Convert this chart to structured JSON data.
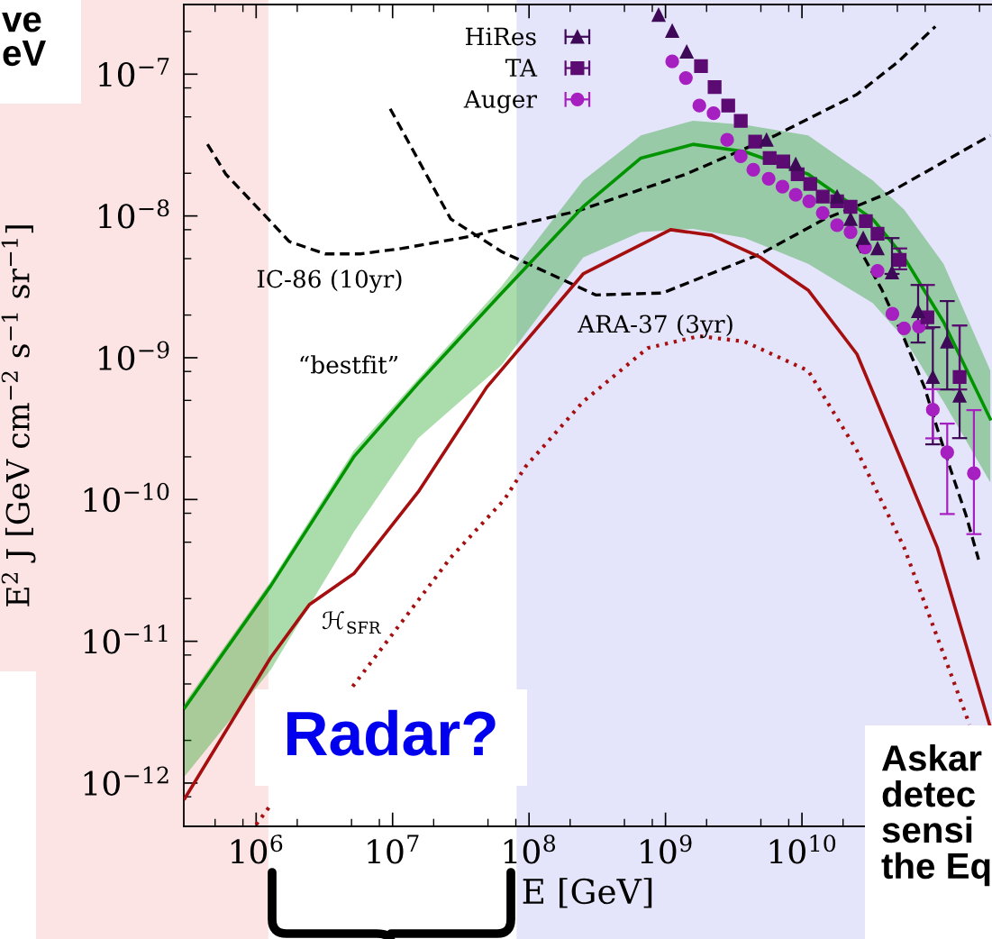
{
  "chart_data": {
    "type": "line",
    "log": "xy",
    "xlabel": "E [GeV]",
    "ylabel": "E$^{2}$ J [GeV cm$^{−2}$ s$^{−1}$ sr$^{−1}$]",
    "xlim": [
      295000.0,
      247000000000.0
    ],
    "ylim": [
      4.95e-13,
      3.1e-07
    ],
    "xticks": [
      {
        "value": 500000.0,
        "label": null
      },
      {
        "value": 800000.0,
        "label": null
      },
      {
        "value": 1000000.0,
        "label": "10$^{6}$"
      },
      {
        "value": 2000000.0,
        "label": null
      },
      {
        "value": 5000000.0,
        "label": null
      },
      {
        "value": 8000000.0,
        "label": null
      },
      {
        "value": 10000000.0,
        "label": "10$^{7}$"
      },
      {
        "value": 20000000.0,
        "label": null
      },
      {
        "value": 50000000.0,
        "label": null
      },
      {
        "value": 80000000.0,
        "label": null
      },
      {
        "value": 100000000.0,
        "label": "10$^{8}$"
      },
      {
        "value": 200000000.0,
        "label": null
      },
      {
        "value": 500000000.0,
        "label": null
      },
      {
        "value": 800000000.0,
        "label": null
      },
      {
        "value": 1000000000.0,
        "label": "10$^{9}$"
      },
      {
        "value": 2000000000.0,
        "label": null
      },
      {
        "value": 5000000000.0,
        "label": null
      },
      {
        "value": 8000000000.0,
        "label": null
      },
      {
        "value": 10000000000.0,
        "label": "10$^{10}$"
      },
      {
        "value": 20000000000.0,
        "label": null
      },
      {
        "value": 50000000000.0,
        "label": null
      },
      {
        "value": 80000000000.0,
        "label": null
      },
      {
        "value": 200000000000.0,
        "label": null
      }
    ],
    "yticks": [
      {
        "value": 8e-13,
        "label": null
      },
      {
        "value": 1e-12,
        "label": "10$^{−12}$"
      },
      {
        "value": 2e-12,
        "label": null
      },
      {
        "value": 5e-12,
        "label": null
      },
      {
        "value": 8e-12,
        "label": null
      },
      {
        "value": 1e-11,
        "label": "10$^{−11}$"
      },
      {
        "value": 2e-11,
        "label": null
      },
      {
        "value": 5e-11,
        "label": null
      },
      {
        "value": 8e-11,
        "label": null
      },
      {
        "value": 1e-10,
        "label": "10$^{−10}$"
      },
      {
        "value": 2e-10,
        "label": null
      },
      {
        "value": 5e-10,
        "label": null
      },
      {
        "value": 8e-10,
        "label": null
      },
      {
        "value": 1e-09,
        "label": "10$^{−9}$"
      },
      {
        "value": 2e-09,
        "label": null
      },
      {
        "value": 5e-09,
        "label": null
      },
      {
        "value": 8e-09,
        "label": null
      },
      {
        "value": 1e-08,
        "label": "10$^{−8}$"
      },
      {
        "value": 2e-08,
        "label": null
      },
      {
        "value": 5e-08,
        "label": null
      },
      {
        "value": 8e-08,
        "label": null
      },
      {
        "value": 1e-07,
        "label": "10$^{−7}$"
      },
      {
        "value": 2e-07,
        "label": null
      }
    ],
    "legend": "top",
    "bands": [
      {
        "axis": "x",
        "from": 295000.0,
        "to": 1230000.0,
        "color": "#fde4e4"
      },
      {
        "axis": "x",
        "from": 81000000.0,
        "to": 247000000000.0,
        "color": "#e4e4fa"
      }
    ],
    "series": [
      {
        "type": "line",
        "color": "#000000",
        "line_style": "dashed",
        "x": [
          440000.0,
          600000.0,
          1280000.0,
          1750000.0,
          3200000.0,
          5800000.0,
          11700000.0,
          41000000.0,
          49000000.0,
          224000000.0,
          1410000000.0,
          6400000000.0,
          25300000000.0,
          51000000000.0,
          95000000000.0
        ],
        "values": [
          3.2e-08,
          1.97e-08,
          9.1e-09,
          6.6e-09,
          5.4e-09,
          5.4e-09,
          5.9e-09,
          7.3e-09,
          7.7e-09,
          1.08e-08,
          1.97e-08,
          3.7e-08,
          7.2e-08,
          1.23e-07,
          2.17e-07
        ]
      },
      {
        "type": "line",
        "color": "#000000",
        "line_style": "dashed",
        "x": [
          9600000.0,
          26700000.0,
          63000000.0,
          308000000.0,
          950000000.0,
          4970000000.0,
          14600000000.0,
          43000000000.0,
          240000000000.0
        ],
        "values": [
          5.7e-08,
          9.5e-09,
          5.6e-09,
          2.77e-09,
          2.86e-09,
          5.4e-09,
          9.5e-09,
          1.45e-08,
          3.7e-08
        ]
      },
      {
        "type": "line",
        "color": "#009400",
        "line_style": "solid",
        "x": [
          300000.0,
          1280000.0,
          5200000.0,
          15400000.0,
          63000000.0,
          249000000.0,
          660000000.0,
          1590000000.0,
          3800000000.0,
          11100000000.0,
          33000000000.0,
          56000000000.0,
          109000000000.0,
          240000000000.0
        ],
        "values": [
          3.4e-12,
          2.46e-11,
          2e-10,
          6.6e-10,
          2.86e-09,
          1.16e-08,
          2.56e-08,
          3.2e-08,
          2.84e-08,
          1.97e-08,
          9.5e-09,
          5.1e-09,
          1.79e-09,
          3.7e-10
        ],
        "lower": [
          1.12e-12,
          6.3e-12,
          5.9e-11,
          2.71e-10,
          8.9e-10,
          5.1e-09,
          7.7e-09,
          8.1e-09,
          7e-09,
          4.6e-09,
          2.43e-09,
          1.37e-09,
          4.9e-10,
          1.32e-10
        ],
        "upper": [
          3.7e-12,
          2.65e-11,
          2.21e-10,
          7.1e-10,
          3.2e-09,
          1.78e-08,
          3.7e-08,
          4.7e-08,
          4.4e-08,
          3.7e-08,
          1.78e-08,
          1.11e-08,
          4.6e-09,
          8.1e-10
        ]
      },
      {
        "type": "line",
        "color": "#a50f0f",
        "line_style": "solid",
        "x": [
          300000.0,
          1280000.0,
          2450000.0,
          5200000.0,
          15400000.0,
          49000000.0,
          249000000.0,
          1090000000.0,
          2190000000.0,
          4970000000.0,
          11100000000.0,
          25300000000.0,
          56000000000.0,
          98000000000.0,
          240000000000.0
        ],
        "values": [
          7.8e-13,
          7.7e-12,
          1.81e-11,
          3e-11,
          1.13e-10,
          6.2e-10,
          3.9e-09,
          8e-09,
          7.3e-09,
          5.1e-09,
          3e-09,
          1.06e-09,
          1.7e-10,
          4.6e-11,
          2.48e-12
        ]
      },
      {
        "type": "line",
        "color": "#a50f0f",
        "line_style": "dotted",
        "x": [
          1000000.0,
          1280000.0,
          2700000.0,
          5100000.0,
          26700000.0,
          66000000.0,
          94000000.0,
          249000000.0,
          740000000.0,
          1770000000.0,
          3800000000.0,
          11100000000.0,
          25300000000.0,
          56000000000.0,
          169000000000.0
        ],
        "values": [
          5.1e-13,
          7e-13,
          null,
          4.8e-12,
          3.9e-11,
          1e-10,
          1.7e-10,
          4.9e-10,
          1.17e-09,
          1.42e-09,
          1.3e-09,
          8.1e-10,
          2.21e-10,
          4.6e-11,
          2.59e-12
        ]
      },
      {
        "type": "line",
        "color": "#000000",
        "line_style": "dashed",
        "x": [
          25300000000.0,
          38600000000.0,
          56000000000.0,
          79000000000.0,
          98000000000.0,
          121000000000.0,
          159000000000.0,
          197000000000.0
        ],
        "values": [
          6.3e-09,
          3e-09,
          1.37e-09,
          6.2e-10,
          3.18e-10,
          1.7e-10,
          7.8e-11,
          3.77e-11
        ]
      },
      {
        "type": "scatter",
        "name": "HiRes",
        "color": "#3e0a58",
        "marker": "triangle",
        "x": [
          890000000.0,
          1120000000.0,
          1430000000.0,
          5500000000.0,
          9000000000.0,
          18100000000.0,
          22700000000.0,
          28100000000.0,
          35800000000.0,
          45700000000.0,
          71000000000.0,
          91000000000.0,
          116000000000.0,
          143000000000.0
        ],
        "values": [
          2.62e-07,
          2.02e-07,
          1.44e-07,
          3.44e-08,
          2.32e-08,
          1.37e-08,
          9.5e-09,
          6.98e-09,
          5.9e-09,
          4e-09,
          2.13e-09,
          7.3e-10,
          1.3e-09,
          5.4e-10
        ],
        "errors": [
          null,
          null,
          null,
          null,
          null,
          null,
          null,
          null,
          null,
          [
            3.9e-09,
            6.98e-09
          ],
          [
            1.28e-09,
            3.26e-09
          ],
          [
            2.45e-10,
            1.64e-09
          ],
          [
            5.97e-10,
            2.51e-09
          ],
          [
            2.71e-10,
            1.69e-09
          ]
        ]
      },
      {
        "type": "scatter",
        "name": "TA",
        "color": "#5c0b72",
        "marker": "square",
        "x": [
          1820000000.0,
          2290000000.0,
          2880000000.0,
          3560000000.0,
          4540000000.0,
          5800000000.0,
          7300000000.0,
          9300000000.0,
          11500000000.0,
          14200000000.0,
          18100000000.0,
          22700000000.0,
          29400000000.0,
          35800000000.0,
          52000000000.0,
          83000000000.0,
          143000000000.0
        ],
        "values": [
          1.14e-07,
          8.1e-08,
          6e-08,
          4.68e-08,
          3.34e-08,
          2.56e-08,
          2.42e-08,
          1.97e-08,
          1.68e-08,
          1.37e-08,
          1.27e-08,
          1.16e-08,
          9.2e-09,
          7.5e-09,
          4.9e-09,
          1.93e-09,
          7.3e-10
        ],
        "errors": [
          null,
          null,
          null,
          null,
          null,
          null,
          null,
          null,
          null,
          null,
          null,
          null,
          null,
          null,
          [
            4.2e-09,
            5.9e-09
          ],
          [
            1.61e-09,
            3.26e-09
          ],
          [
            5.97e-10,
            1.69e-09
          ]
        ]
      },
      {
        "type": "scatter",
        "name": "Auger",
        "color": "#a61fc0",
        "marker": "circle",
        "x": [
          1120000000.0,
          1410000000.0,
          1770000000.0,
          2250000000.0,
          2830000000.0,
          3560000000.0,
          4400000000.0,
          5700000000.0,
          7200000000.0,
          9000000000.0,
          11300000000.0,
          14200000000.0,
          18100000000.0,
          22700000000.0,
          29000000000.0,
          35800000000.0,
          46000000000.0,
          56000000000.0,
          72000000000.0,
          91000000000.0,
          116000000000.0,
          182000000000.0
        ],
        "values": [
          1.23e-07,
          9.4e-08,
          6e-08,
          5.3e-08,
          3.44e-08,
          2.64e-08,
          2.12e-08,
          1.83e-08,
          1.61e-08,
          1.41e-08,
          1.27e-08,
          1.05e-08,
          8.6e-09,
          7.7e-09,
          6e-09,
          4.1e-09,
          2.04e-09,
          1.61e-09,
          1.66e-09,
          4.3e-10,
          2.15e-10,
          1.53e-10
        ],
        "errors": [
          null,
          null,
          null,
          null,
          null,
          null,
          null,
          null,
          null,
          null,
          null,
          null,
          null,
          null,
          null,
          null,
          null,
          null,
          null,
          [
            2.7e-10,
            6e-10
          ],
          [
            7.9e-11,
            3.43e-10
          ],
          [
            5.7e-11,
            4.27e-10
          ]
        ]
      }
    ],
    "annotations": [
      "IC-86 (10yr)",
      "ARA-37 (3yr)",
      "“bestfit”",
      "ℋ$_{SFR}$",
      "ve\neV",
      "Radar?",
      "Askar\ndetec\nsensi\nthe Eq"
    ]
  }
}
